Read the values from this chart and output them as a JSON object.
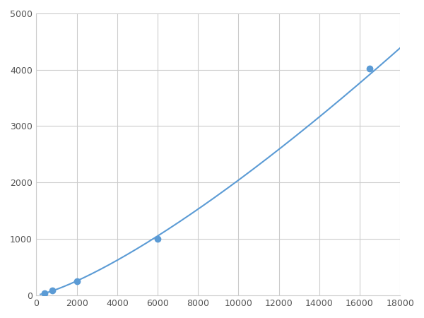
{
  "x": [
    400,
    800,
    2000,
    6000,
    16500
  ],
  "y": [
    30,
    80,
    250,
    1000,
    4020
  ],
  "line_color": "#5b9bd5",
  "marker_color": "#5b9bd5",
  "marker_size": 6,
  "xlim": [
    0,
    18000
  ],
  "ylim": [
    0,
    5000
  ],
  "xticks": [
    0,
    2000,
    4000,
    6000,
    8000,
    10000,
    12000,
    14000,
    16000,
    18000
  ],
  "yticks": [
    0,
    1000,
    2000,
    3000,
    4000,
    5000
  ],
  "grid": true,
  "background_color": "#ffffff",
  "linewidth": 1.5
}
